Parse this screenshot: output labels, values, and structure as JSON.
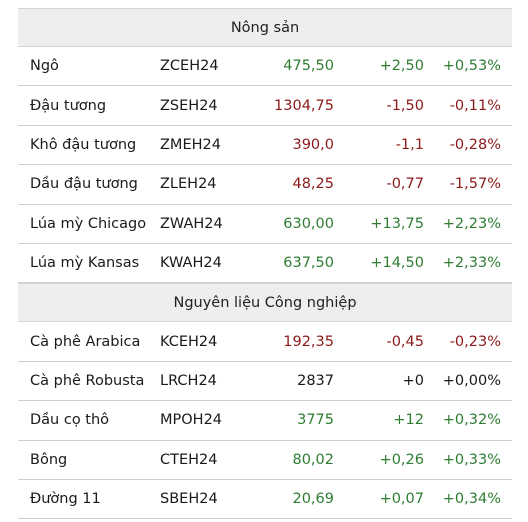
{
  "sections": [
    {
      "title": "Nông sản",
      "rows": [
        {
          "name": "Ngô",
          "code": "ZCEH24",
          "price": "475,50",
          "change": "+2,50",
          "pct": "+0,53%",
          "dir": "up"
        },
        {
          "name": "Đậu tương",
          "code": "ZSEH24",
          "price": "1304,75",
          "change": "-1,50",
          "pct": "-0,11%",
          "dir": "down"
        },
        {
          "name": "Khô đậu tương",
          "code": "ZMEH24",
          "price": "390,0",
          "change": "-1,1",
          "pct": "-0,28%",
          "dir": "down"
        },
        {
          "name": "Dầu đậu tương",
          "code": "ZLEH24",
          "price": "48,25",
          "change": "-0,77",
          "pct": "-1,57%",
          "dir": "down"
        },
        {
          "name": "Lúa mỳ Chicago",
          "code": "ZWAH24",
          "price": "630,00",
          "change": "+13,75",
          "pct": "+2,23%",
          "dir": "up"
        },
        {
          "name": "Lúa mỳ Kansas",
          "code": "KWAH24",
          "price": "637,50",
          "change": "+14,50",
          "pct": "+2,33%",
          "dir": "up"
        }
      ]
    },
    {
      "title": "Nguyên liệu Công nghiệp",
      "rows": [
        {
          "name": "Cà phê Arabica",
          "code": "KCEH24",
          "price": "192,35",
          "change": "-0,45",
          "pct": "-0,23%",
          "dir": "down"
        },
        {
          "name": "Cà phê Robusta",
          "code": "LRCH24",
          "price": "2837",
          "change": "+0",
          "pct": "+0,00%",
          "dir": "neutral"
        },
        {
          "name": "Dầu cọ thô",
          "code": "MPOH24",
          "price": "3775",
          "change": "+12",
          "pct": "+0,32%",
          "dir": "up"
        },
        {
          "name": "Bông",
          "code": "CTEH24",
          "price": "80,02",
          "change": "+0,26",
          "pct": "+0,33%",
          "dir": "up"
        },
        {
          "name": "Đường 11",
          "code": "SBEH24",
          "price": "20,69",
          "change": "+0,07",
          "pct": "+0,34%",
          "dir": "up"
        }
      ]
    }
  ],
  "colors": {
    "up": "#2e7d32",
    "down": "#8b1a1a",
    "neutral": "#1a1a1a",
    "header_bg": "#eeeeee"
  }
}
